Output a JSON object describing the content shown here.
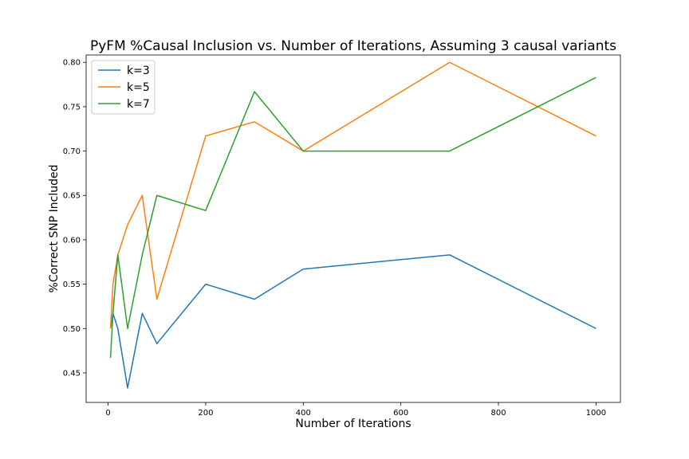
{
  "chart_data": {
    "type": "line",
    "title": "PyFM %Causal Inclusion vs. Number of Iterations, Assuming 3 causal variants",
    "xlabel": "Number of Iterations",
    "ylabel": "%Correct SNP Included",
    "xlim": [
      -45,
      1050
    ],
    "ylim": [
      0.4167,
      0.8083
    ],
    "xticks": [
      0,
      200,
      400,
      600,
      800,
      1000
    ],
    "yticks": [
      0.45,
      0.5,
      0.55,
      0.6,
      0.65,
      0.7,
      0.75,
      0.8
    ],
    "ytick_labels": [
      "0.45",
      "0.50",
      "0.55",
      "0.60",
      "0.65",
      "0.70",
      "0.75",
      "0.80"
    ],
    "grid": false,
    "legend_position": "top-left",
    "series": [
      {
        "name": "k=3",
        "color": "#1f77b4",
        "x": [
          5,
          10,
          20,
          40,
          70,
          100,
          200,
          300,
          400,
          700,
          1000
        ],
        "y": [
          0.5,
          0.517,
          0.5,
          0.433,
          0.517,
          0.483,
          0.55,
          0.533,
          0.567,
          0.583,
          0.5
        ]
      },
      {
        "name": "k=5",
        "color": "#ff7f0e",
        "x": [
          5,
          10,
          20,
          40,
          70,
          100,
          200,
          300,
          400,
          700,
          1000
        ],
        "y": [
          0.5,
          0.55,
          0.583,
          0.617,
          0.65,
          0.533,
          0.717,
          0.733,
          0.7,
          0.8,
          0.717
        ]
      },
      {
        "name": "k=7",
        "color": "#2ca02c",
        "x": [
          5,
          10,
          20,
          40,
          70,
          100,
          200,
          300,
          400,
          700,
          1000
        ],
        "y": [
          0.467,
          0.517,
          0.583,
          0.5,
          0.583,
          0.65,
          0.633,
          0.767,
          0.7,
          0.7,
          0.783
        ]
      }
    ]
  }
}
